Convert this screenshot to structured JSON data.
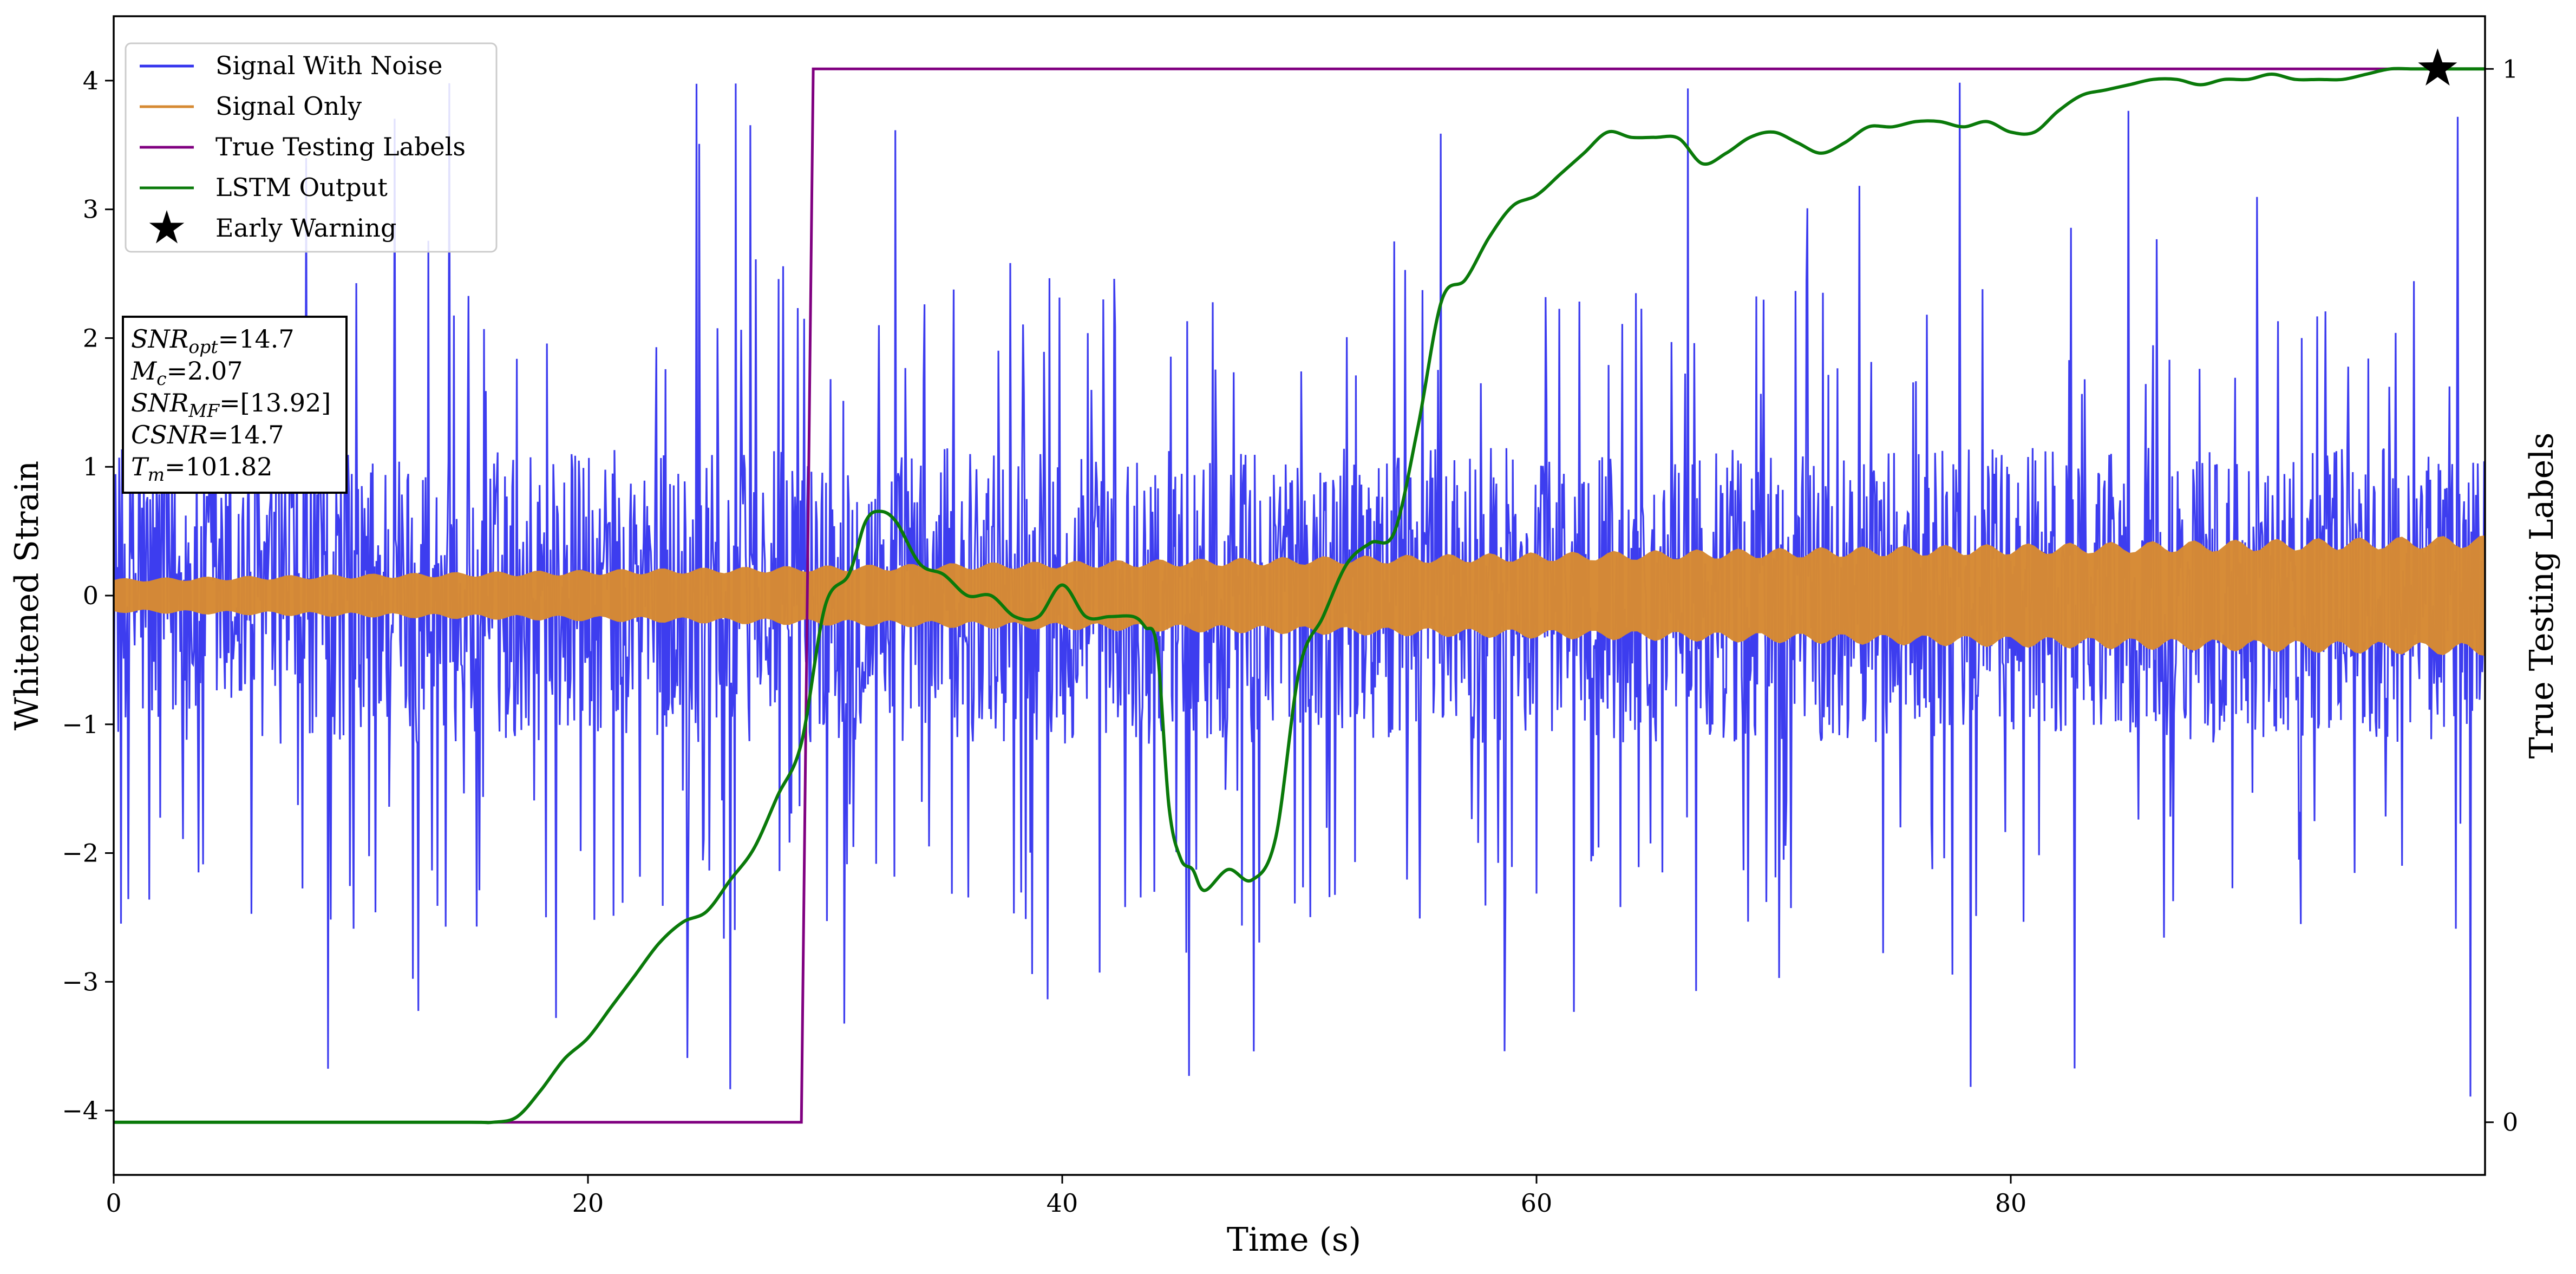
{
  "chart_data": {
    "type": "line",
    "xlabel": "Time (s)",
    "ylabel": "Whitened Strain",
    "y2label": "True Testing Labels",
    "xlim": [
      0,
      100
    ],
    "ylim": [
      -4.5,
      4.5
    ],
    "y2lim": [
      -0.05,
      1.05
    ],
    "xticks": [
      0,
      20,
      40,
      60,
      80
    ],
    "yticks": [
      -4,
      -3,
      -2,
      -1,
      0,
      1,
      2,
      3,
      4
    ],
    "y2ticks": [
      0,
      1
    ],
    "grid": false,
    "legend_position": "top-left",
    "colors": {
      "noise": "#3333ee",
      "signal": "#d68a33",
      "labels": "#800080",
      "lstm": "#0a7a0a",
      "warning": "#000000"
    },
    "series": [
      {
        "name": "Signal With Noise",
        "axis": "left",
        "description_points": {
          "typical_envelope": [
            -1.2,
            1.2
          ],
          "peak_range": [
            -3.9,
            4.05
          ]
        }
      },
      {
        "name": "Signal Only",
        "axis": "left",
        "envelope": {
          "x": [
            0,
            100
          ],
          "amplitude": [
            0.12,
            0.42
          ]
        }
      },
      {
        "name": "True Testing Labels",
        "axis": "right",
        "x": [
          0,
          29.0,
          29.5,
          100
        ],
        "y": [
          0,
          0,
          1,
          1
        ]
      },
      {
        "name": "LSTM Output",
        "axis": "right",
        "x": [
          0,
          5,
          10,
          15,
          16,
          17,
          18,
          19,
          20,
          21,
          22,
          23,
          24,
          25,
          26,
          27,
          28,
          29,
          30,
          31,
          31.7,
          32.3,
          33,
          34,
          35,
          36,
          37,
          38,
          39,
          40,
          41,
          42,
          43,
          43.5,
          44,
          44.5,
          45,
          45.5,
          46,
          47,
          48,
          49,
          50,
          51,
          52,
          53,
          54,
          55,
          56,
          57,
          58,
          59,
          60,
          61,
          62,
          63,
          64,
          65,
          66,
          67,
          68,
          69,
          70,
          71,
          72,
          73,
          74,
          75,
          76,
          77,
          78,
          79,
          80,
          81,
          82,
          83,
          84,
          85,
          86,
          87,
          88,
          89,
          90,
          91,
          92,
          93,
          94,
          95,
          96,
          97,
          98,
          99,
          100
        ],
        "y": [
          0.0,
          0.0,
          0.0,
          0.0,
          0.0,
          0.005,
          0.03,
          0.06,
          0.08,
          0.11,
          0.14,
          0.17,
          0.19,
          0.2,
          0.23,
          0.26,
          0.31,
          0.36,
          0.49,
          0.52,
          0.57,
          0.58,
          0.57,
          0.53,
          0.52,
          0.5,
          0.5,
          0.48,
          0.48,
          0.51,
          0.48,
          0.48,
          0.48,
          0.47,
          0.45,
          0.3,
          0.25,
          0.24,
          0.22,
          0.24,
          0.23,
          0.27,
          0.43,
          0.48,
          0.53,
          0.55,
          0.56,
          0.66,
          0.78,
          0.8,
          0.84,
          0.87,
          0.88,
          0.9,
          0.92,
          0.94,
          0.935,
          0.935,
          0.934,
          0.91,
          0.92,
          0.935,
          0.94,
          0.93,
          0.92,
          0.93,
          0.945,
          0.945,
          0.95,
          0.95,
          0.945,
          0.95,
          0.94,
          0.94,
          0.96,
          0.975,
          0.98,
          0.985,
          0.99,
          0.99,
          0.985,
          0.99,
          0.99,
          0.995,
          0.99,
          0.99,
          0.99,
          0.995,
          1.0,
          1.0,
          1.0,
          1.0,
          1.0
        ]
      },
      {
        "name": "Early Warning",
        "axis": "right",
        "type": "scatter",
        "marker": "star",
        "x": [
          98
        ],
        "y": [
          1.0
        ]
      }
    ],
    "annotation_lines": [
      {
        "main": "SNR",
        "sub": "opt",
        "rest": "=14.7"
      },
      {
        "main": "M",
        "sub": "c",
        "rest": "=2.07"
      },
      {
        "main": "SNR",
        "sub": "MF",
        "rest": "=[13.92]"
      },
      {
        "main": "CSNR",
        "sub": "",
        "rest": "=14.7"
      },
      {
        "main": "T",
        "sub": "m",
        "rest": "=101.82"
      }
    ]
  }
}
